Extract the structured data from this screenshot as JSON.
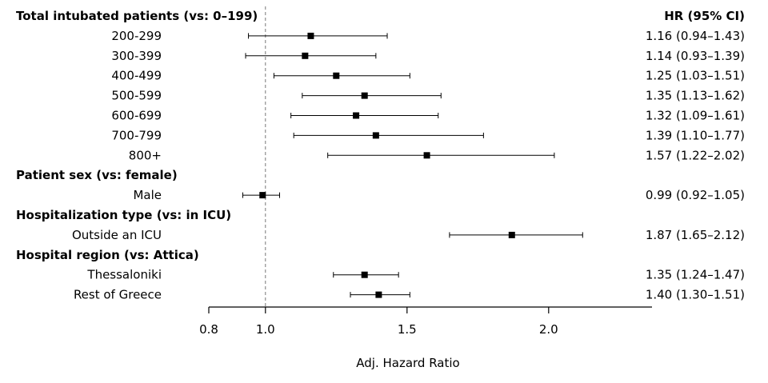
{
  "chart_data": {
    "type": "forest",
    "xlabel": "Adj. Hazard Ratio",
    "hr_header": "HR (95% CI)",
    "reference_value": 1.0,
    "xlim": [
      0.8,
      2.35
    ],
    "xticks": [
      {
        "value": 0.8,
        "label": "0.8"
      },
      {
        "value": 1.0,
        "label": "1.0"
      },
      {
        "value": 1.5,
        "label": "1.5"
      },
      {
        "value": 2.0,
        "label": "2.0"
      }
    ],
    "rows": [
      {
        "kind": "heading",
        "label": "Total intubated patients (vs: 0–199)"
      },
      {
        "kind": "item",
        "label": "200-299",
        "hr": 1.16,
        "lo": 0.94,
        "hi": 1.43,
        "text": "1.16 (0.94–1.43)"
      },
      {
        "kind": "item",
        "label": "300-399",
        "hr": 1.14,
        "lo": 0.93,
        "hi": 1.39,
        "text": "1.14 (0.93–1.39)"
      },
      {
        "kind": "item",
        "label": "400-499",
        "hr": 1.25,
        "lo": 1.03,
        "hi": 1.51,
        "text": "1.25 (1.03–1.51)"
      },
      {
        "kind": "item",
        "label": "500-599",
        "hr": 1.35,
        "lo": 1.13,
        "hi": 1.62,
        "text": "1.35 (1.13–1.62)"
      },
      {
        "kind": "item",
        "label": "600-699",
        "hr": 1.32,
        "lo": 1.09,
        "hi": 1.61,
        "text": "1.32 (1.09–1.61)"
      },
      {
        "kind": "item",
        "label": "700-799",
        "hr": 1.39,
        "lo": 1.1,
        "hi": 1.77,
        "text": "1.39 (1.10–1.77)"
      },
      {
        "kind": "item",
        "label": "800+",
        "hr": 1.57,
        "lo": 1.22,
        "hi": 2.02,
        "text": "1.57 (1.22–2.02)"
      },
      {
        "kind": "heading",
        "label": "Patient sex (vs: female)"
      },
      {
        "kind": "item",
        "label": "Male",
        "hr": 0.99,
        "lo": 0.92,
        "hi": 1.05,
        "text": "0.99 (0.92–1.05)"
      },
      {
        "kind": "heading",
        "label": "Hospitalization type (vs: in ICU)"
      },
      {
        "kind": "item",
        "label": "Outside an ICU",
        "hr": 1.87,
        "lo": 1.65,
        "hi": 2.12,
        "text": "1.87 (1.65–2.12)"
      },
      {
        "kind": "heading",
        "label": "Hospital region (vs: Attica)"
      },
      {
        "kind": "item",
        "label": "Thessaloniki",
        "hr": 1.35,
        "lo": 1.24,
        "hi": 1.47,
        "text": "1.35 (1.24–1.47)"
      },
      {
        "kind": "item",
        "label": "Rest of Greece",
        "hr": 1.4,
        "lo": 1.3,
        "hi": 1.51,
        "text": "1.40 (1.30–1.51)"
      }
    ]
  }
}
